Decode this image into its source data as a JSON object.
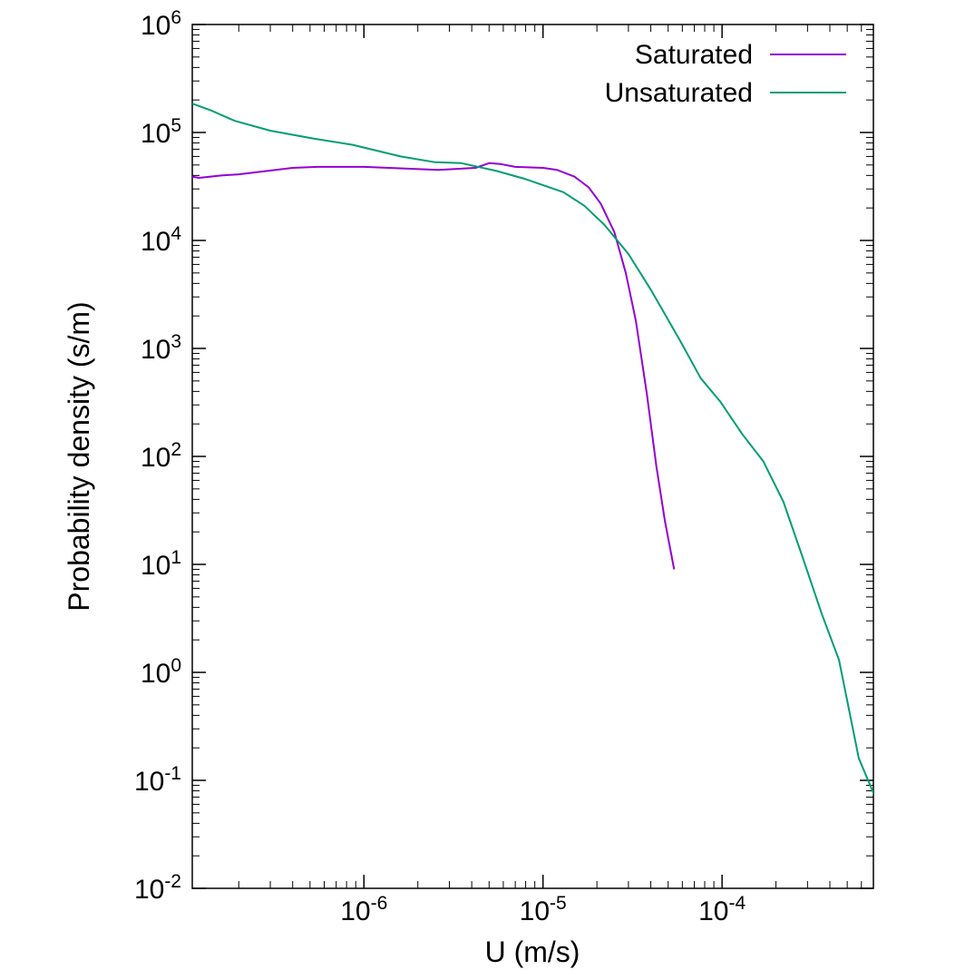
{
  "chart_data": {
    "type": "line",
    "title": "",
    "xlabel": "U (m/s)",
    "ylabel": "Probability density (s/m)",
    "x_scale": "log",
    "y_scale": "log",
    "xlim": [
      1.1e-07,
      0.0007
    ],
    "ylim": [
      0.01,
      1000000
    ],
    "x_ticks": [
      {
        "value": 1e-06,
        "base": "10",
        "exp": "-6"
      },
      {
        "value": 1e-05,
        "base": "10",
        "exp": "-5"
      },
      {
        "value": 0.0001,
        "base": "10",
        "exp": "-4"
      }
    ],
    "y_ticks": [
      {
        "value": 0.01,
        "base": "10",
        "exp": "-2"
      },
      {
        "value": 0.1,
        "base": "10",
        "exp": "-1"
      },
      {
        "value": 1,
        "base": "10",
        "exp": "0"
      },
      {
        "value": 10,
        "base": "10",
        "exp": "1"
      },
      {
        "value": 100,
        "base": "10",
        "exp": "2"
      },
      {
        "value": 1000,
        "base": "10",
        "exp": "3"
      },
      {
        "value": 10000,
        "base": "10",
        "exp": "4"
      },
      {
        "value": 100000,
        "base": "10",
        "exp": "5"
      },
      {
        "value": 1000000,
        "base": "10",
        "exp": "6"
      }
    ],
    "grid": false,
    "legend_position": "top-right",
    "series": [
      {
        "name": "Saturated",
        "color": "#9400d3",
        "points": [
          [
            1.1e-07,
            39000
          ],
          [
            1.2e-07,
            38000
          ],
          [
            1.6e-07,
            40000
          ],
          [
            2e-07,
            41000
          ],
          [
            4e-07,
            47000
          ],
          [
            5.5e-07,
            48000
          ],
          [
            1e-06,
            48000
          ],
          [
            2.6e-06,
            45000
          ],
          [
            4.2e-06,
            47000
          ],
          [
            5e-06,
            52000
          ],
          [
            5.8e-06,
            51000
          ],
          [
            7e-06,
            48000
          ],
          [
            1e-05,
            47000
          ],
          [
            1.2e-05,
            45000
          ],
          [
            1.5e-05,
            39000
          ],
          [
            1.8e-05,
            31000
          ],
          [
            2.1e-05,
            22000
          ],
          [
            2.5e-05,
            12000
          ],
          [
            2.9e-05,
            5000
          ],
          [
            3.3e-05,
            1800
          ],
          [
            3.8e-05,
            380
          ],
          [
            4.3e-05,
            80
          ],
          [
            4.8e-05,
            25
          ],
          [
            5.4e-05,
            9
          ]
        ]
      },
      {
        "name": "Unsaturated",
        "color": "#009e73",
        "points": [
          [
            1.1e-07,
            185000
          ],
          [
            1.4e-07,
            160000
          ],
          [
            1.9e-07,
            128000
          ],
          [
            3e-07,
            104000
          ],
          [
            5.2e-07,
            88000
          ],
          [
            8.6e-07,
            77000
          ],
          [
            1.6e-06,
            60000
          ],
          [
            2.5e-06,
            53000
          ],
          [
            3.5e-06,
            52000
          ],
          [
            5.5e-06,
            44000
          ],
          [
            8e-06,
            37000
          ],
          [
            1.3e-05,
            28000
          ],
          [
            1.7e-05,
            21000
          ],
          [
            2.2e-05,
            14000
          ],
          [
            3e-05,
            7500
          ],
          [
            4e-05,
            3500
          ],
          [
            5.8e-05,
            1200
          ],
          [
            7.6e-05,
            530
          ],
          [
            9.8e-05,
            320
          ],
          [
            0.00013,
            160
          ],
          [
            0.00017,
            90
          ],
          [
            0.00022,
            38
          ],
          [
            0.00028,
            12
          ],
          [
            0.00036,
            3.5
          ],
          [
            0.00045,
            1.3
          ],
          [
            0.00058,
            0.16
          ],
          [
            0.00073,
            0.065
          ],
          [
            0.00083,
            0.062
          ]
        ]
      }
    ]
  }
}
